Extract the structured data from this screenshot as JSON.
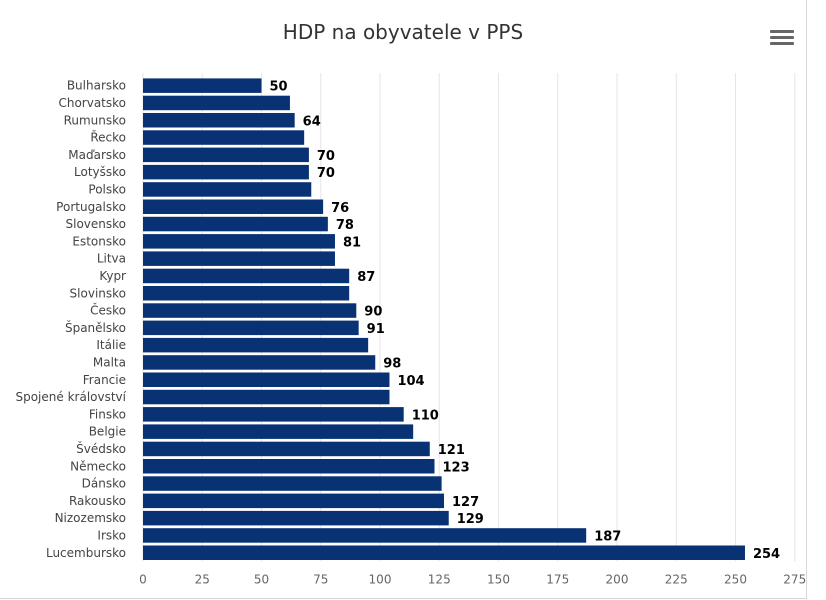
{
  "chart_data": {
    "type": "bar",
    "orientation": "horizontal",
    "title": "HDP na obyvatele v PPS",
    "categories": [
      "Bulharsko",
      "Chorvatsko",
      "Rumunsko",
      "Řecko",
      "Maďarsko",
      "Lotyšsko",
      "Polsko",
      "Portugalsko",
      "Slovensko",
      "Estonsko",
      "Litva",
      "Kypr",
      "Slovinsko",
      "Česko",
      "Španělsko",
      "Itálie",
      "Malta",
      "Francie",
      "Spojené království",
      "Finsko",
      "Belgie",
      "Švédsko",
      "Německo",
      "Dánsko",
      "Rakousko",
      "Nizozemsko",
      "Irsko",
      "Lucembursko"
    ],
    "values": [
      50,
      62,
      64,
      68,
      70,
      70,
      71,
      76,
      78,
      81,
      81,
      87,
      87,
      90,
      91,
      95,
      98,
      104,
      104,
      110,
      114,
      121,
      123,
      126,
      127,
      129,
      187,
      254
    ],
    "data_labels": [
      "50",
      "",
      "64",
      "",
      "70",
      "70",
      "",
      "76",
      "78",
      "81",
      "",
      "87",
      "",
      "90",
      "91",
      "",
      "98",
      "104",
      "",
      "110",
      "",
      "121",
      "123",
      "",
      "127",
      "129",
      "187",
      "254"
    ],
    "xlim": [
      0,
      275
    ],
    "x_ticks": [
      "0",
      "25",
      "50",
      "75",
      "100",
      "125",
      "150",
      "175",
      "200",
      "225",
      "250",
      "275"
    ],
    "grid": true,
    "bar_color": "#083273"
  }
}
